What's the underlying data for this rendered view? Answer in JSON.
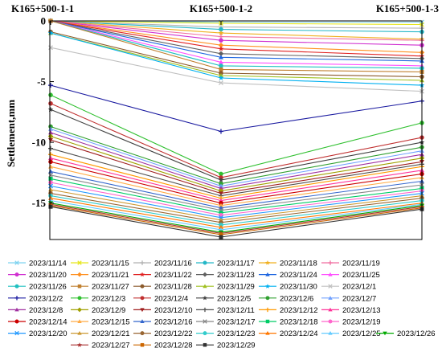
{
  "chart_data": {
    "type": "line",
    "title": "",
    "xlabel": "",
    "ylabel": "Settlement,mm",
    "categories": [
      "K165+500-1-1",
      "K165+500-1-2",
      "K165+500-1-3"
    ],
    "ylim": [
      -18,
      0
    ],
    "yticks": [
      0,
      -5,
      -10,
      -15
    ],
    "grid": false,
    "legend_position": "bottom",
    "series": [
      {
        "name": "2023/11/14",
        "color": "#7fd3f0",
        "marker": "x",
        "values": [
          0,
          -0.1,
          -0.1
        ]
      },
      {
        "name": "2023/11/15",
        "color": "#e6e61e",
        "marker": "x",
        "values": [
          0,
          -0.2,
          -0.3
        ]
      },
      {
        "name": "2023/11/16",
        "color": "#b0b0b0",
        "marker": "plus",
        "values": [
          0,
          -0.5,
          -0.6
        ]
      },
      {
        "name": "2023/11/17",
        "color": "#24b7c7",
        "marker": "circle",
        "values": [
          0,
          -0.7,
          -0.9
        ]
      },
      {
        "name": "2023/11/18",
        "color": "#f0b020",
        "marker": "star",
        "values": [
          0,
          -1.0,
          -1.5
        ]
      },
      {
        "name": "2023/11/19",
        "color": "#f06ea0",
        "marker": "plus",
        "values": [
          0,
          -1.3,
          -1.6
        ]
      },
      {
        "name": "2023/11/20",
        "color": "#d030d0",
        "marker": "circle",
        "values": [
          0,
          -1.6,
          -2.0
        ]
      },
      {
        "name": "2023/11/21",
        "color": "#ff9020",
        "marker": "diamond",
        "values": [
          0,
          -2.0,
          -2.6
        ]
      },
      {
        "name": "2023/11/22",
        "color": "#e02020",
        "marker": "star",
        "values": [
          0,
          -2.3,
          -2.9
        ]
      },
      {
        "name": "2023/11/23",
        "color": "#606060",
        "marker": "diamond",
        "values": [
          0,
          -2.7,
          -3.1
        ]
      },
      {
        "name": "2023/11/24",
        "color": "#1e66e0",
        "marker": "triangle",
        "values": [
          0,
          -3.0,
          -3.3
        ]
      },
      {
        "name": "2023/11/25",
        "color": "#ff50ff",
        "marker": "triangle",
        "values": [
          0,
          -3.4,
          -3.7
        ]
      },
      {
        "name": "2023/11/26",
        "color": "#20c0c0",
        "marker": "circle",
        "values": [
          0,
          -3.7,
          -3.9
        ]
      },
      {
        "name": "2023/11/27",
        "color": "#c08030",
        "marker": "square",
        "values": [
          0,
          -4.0,
          -4.2
        ]
      },
      {
        "name": "2023/11/28",
        "color": "#8b5a2b",
        "marker": "circle",
        "values": [
          -0.9,
          -4.3,
          -4.6
        ]
      },
      {
        "name": "2023/11/29",
        "color": "#a0c020",
        "marker": "triangle",
        "values": [
          -1.0,
          -4.5,
          -4.9
        ]
      },
      {
        "name": "2023/11/30",
        "color": "#00b0f0",
        "marker": "star",
        "values": [
          -1.0,
          -4.7,
          -5.3
        ]
      },
      {
        "name": "2023/12/1",
        "color": "#c0c0c0",
        "marker": "x",
        "values": [
          -2.2,
          -5.1,
          -5.8
        ]
      },
      {
        "name": "2023/12/2",
        "color": "#1a1aa0",
        "marker": "plus",
        "values": [
          -5.3,
          -9.1,
          -6.6
        ]
      },
      {
        "name": "2023/12/3",
        "color": "#30c030",
        "marker": "circle",
        "values": [
          -6.1,
          -12.6,
          -8.4
        ]
      },
      {
        "name": "2023/12/4",
        "color": "#c03030",
        "marker": "circle",
        "values": [
          -6.8,
          -12.9,
          -9.6
        ]
      },
      {
        "name": "2023/12/5",
        "color": "#404040",
        "marker": "star",
        "values": [
          -7.3,
          -13.1,
          -10.0
        ]
      },
      {
        "name": "2023/12/6",
        "color": "#30a030",
        "marker": "circle",
        "values": [
          -8.7,
          -13.4,
          -10.4
        ]
      },
      {
        "name": "2023/12/7",
        "color": "#70a0ff",
        "marker": "triangle",
        "values": [
          -8.9,
          -13.6,
          -10.7
        ]
      },
      {
        "name": "2023/12/8",
        "color": "#a030a0",
        "marker": "triangle",
        "values": [
          -9.2,
          -13.8,
          -11.0
        ]
      },
      {
        "name": "2023/12/9",
        "color": "#a0a000",
        "marker": "diamond",
        "values": [
          -9.5,
          -14.0,
          -11.3
        ]
      },
      {
        "name": "2023/12/10",
        "color": "#a02020",
        "marker": "triangle-down",
        "values": [
          -9.8,
          -14.2,
          -11.6
        ]
      },
      {
        "name": "2023/12/11",
        "color": "#505050",
        "marker": "plus",
        "values": [
          -10.5,
          -14.4,
          -11.8
        ]
      },
      {
        "name": "2023/12/12",
        "color": "#ff9900",
        "marker": "plus",
        "values": [
          -11.0,
          -14.6,
          -12.0
        ]
      },
      {
        "name": "2023/12/13",
        "color": "#ff3399",
        "marker": "triangle",
        "values": [
          -11.3,
          -14.8,
          -12.3
        ]
      },
      {
        "name": "2023/12/14",
        "color": "#cc0000",
        "marker": "circle",
        "values": [
          -11.6,
          -15.0,
          -12.6
        ]
      },
      {
        "name": "2023/12/15",
        "color": "#ffaa44",
        "marker": "triangle",
        "values": [
          -12.0,
          -15.2,
          -12.9
        ]
      },
      {
        "name": "2023/12/16",
        "color": "#3366cc",
        "marker": "triangle",
        "values": [
          -12.4,
          -15.4,
          -13.2
        ]
      },
      {
        "name": "2023/12/17",
        "color": "#888888",
        "marker": "x",
        "values": [
          -12.7,
          -15.6,
          -13.5
        ]
      },
      {
        "name": "2023/12/18",
        "color": "#00cc66",
        "marker": "square",
        "values": [
          -13.0,
          -15.8,
          -13.8
        ]
      },
      {
        "name": "2023/12/19",
        "color": "#ff66cc",
        "marker": "circle",
        "values": [
          -13.3,
          -16.0,
          -14.0
        ]
      },
      {
        "name": "2023/12/20",
        "color": "#2299ff",
        "marker": "x",
        "values": [
          -13.6,
          -16.2,
          -14.2
        ]
      },
      {
        "name": "2023/12/21",
        "color": "#cc9933",
        "marker": "triangle",
        "values": [
          -13.9,
          -16.4,
          -14.4
        ]
      },
      {
        "name": "2023/12/22",
        "color": "#996633",
        "marker": "circle",
        "values": [
          -14.2,
          -16.6,
          -14.6
        ]
      },
      {
        "name": "2023/12/23",
        "color": "#33cccc",
        "marker": "circle",
        "values": [
          -14.4,
          -16.8,
          -14.8
        ]
      },
      {
        "name": "2023/12/24",
        "color": "#ff7700",
        "marker": "triangle",
        "values": [
          -14.6,
          -17.0,
          -15.0
        ]
      },
      {
        "name": "2023/12/25",
        "color": "#66ccff",
        "marker": "triangle",
        "values": [
          -14.8,
          -17.2,
          -15.1
        ]
      },
      {
        "name": "2023/12/26",
        "color": "#00aa00",
        "marker": "triangle-down",
        "values": [
          -15.0,
          -17.4,
          -15.2
        ]
      },
      {
        "name": "2023/12/27",
        "color": "#aa3333",
        "marker": "star",
        "values": [
          -15.1,
          -17.5,
          -15.3
        ]
      },
      {
        "name": "2023/12/28",
        "color": "#cc6600",
        "marker": "square",
        "values": [
          -15.2,
          -17.6,
          -15.4
        ]
      },
      {
        "name": "2023/12/29",
        "color": "#333333",
        "marker": "square",
        "values": [
          -15.3,
          -17.8,
          -15.5
        ]
      }
    ]
  }
}
